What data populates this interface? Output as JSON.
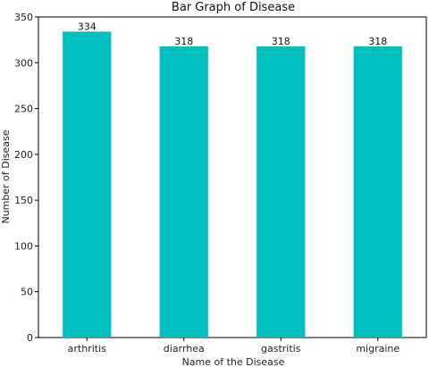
{
  "chart_data": {
    "type": "bar",
    "title": "Bar Graph of Disease",
    "xlabel": "Name of the Disease",
    "ylabel": "Number of Disease",
    "categories": [
      "arthritis",
      "diarrhea",
      "gastritis",
      "migraine"
    ],
    "values": [
      334,
      318,
      318,
      318
    ],
    "data_labels": [
      "334",
      "318",
      "318",
      "318"
    ],
    "ylim": [
      0,
      350
    ],
    "yticks": [
      0,
      50,
      100,
      150,
      200,
      250,
      300,
      350
    ],
    "grid": false,
    "bar_color": "#00BFBF"
  }
}
